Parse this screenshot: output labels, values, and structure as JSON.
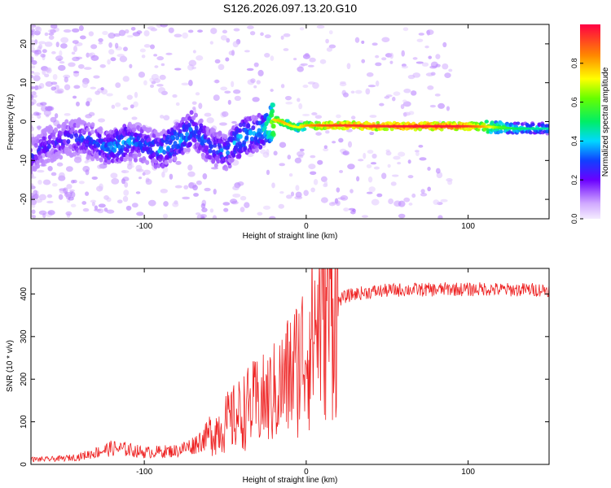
{
  "title": "S126.2026.097.13.20.G10",
  "colors": {
    "snr_line": "#ee2222",
    "axis": "#000000"
  },
  "chart_data": [
    {
      "type": "heatmap",
      "xlabel": "Height of straight line (km)",
      "ylabel": "Frequency (Hz)",
      "xlim": [
        -170,
        150
      ],
      "ylim": [
        -25,
        25
      ],
      "xticks": [
        -100,
        0,
        100
      ],
      "xtick_labels": [
        "-100",
        "0",
        "100"
      ],
      "yticks": [
        -20,
        -10,
        0,
        10,
        20
      ],
      "ytick_labels": [
        "-20",
        "-10",
        "0",
        "10",
        "20"
      ],
      "colorbar": {
        "label": "Normalized spectral amplitude",
        "range": [
          0,
          1
        ],
        "ticks": [
          0.0,
          0.2,
          0.4,
          0.6,
          0.8
        ],
        "tick_labels": [
          "0.0",
          "0.2",
          "0.4",
          "0.6",
          "0.8"
        ]
      },
      "ridge": [
        {
          "x": -170,
          "f": -9.0,
          "a": 0.25
        },
        {
          "x": -160,
          "f": -6.0,
          "a": 0.25
        },
        {
          "x": -150,
          "f": -4.5,
          "a": 0.25
        },
        {
          "x": -140,
          "f": -4.0,
          "a": 0.28
        },
        {
          "x": -130,
          "f": -5.5,
          "a": 0.3
        },
        {
          "x": -120,
          "f": -7.0,
          "a": 0.35
        },
        {
          "x": -110,
          "f": -5.0,
          "a": 0.35
        },
        {
          "x": -100,
          "f": -6.0,
          "a": 0.3
        },
        {
          "x": -90,
          "f": -7.5,
          "a": 0.35
        },
        {
          "x": -80,
          "f": -5.0,
          "a": 0.38
        },
        {
          "x": -70,
          "f": -2.0,
          "a": 0.35
        },
        {
          "x": -60,
          "f": -6.0,
          "a": 0.3
        },
        {
          "x": -50,
          "f": -8.0,
          "a": 0.32
        },
        {
          "x": -40,
          "f": -4.0,
          "a": 0.38
        },
        {
          "x": -30,
          "f": -3.0,
          "a": 0.35
        },
        {
          "x": -25,
          "f": -2.0,
          "a": 0.45
        },
        {
          "x": -20,
          "f": 0.5,
          "a": 0.7
        },
        {
          "x": -15,
          "f": 0.0,
          "a": 0.75
        },
        {
          "x": -10,
          "f": -1.0,
          "a": 0.7
        },
        {
          "x": -5,
          "f": -1.5,
          "a": 0.65
        },
        {
          "x": 0,
          "f": -1.0,
          "a": 0.75
        },
        {
          "x": 10,
          "f": -1.0,
          "a": 0.85
        },
        {
          "x": 20,
          "f": -1.0,
          "a": 0.88
        },
        {
          "x": 30,
          "f": -1.0,
          "a": 0.88
        },
        {
          "x": 40,
          "f": -1.2,
          "a": 0.9
        },
        {
          "x": 50,
          "f": -1.2,
          "a": 0.9
        },
        {
          "x": 60,
          "f": -1.2,
          "a": 0.92
        },
        {
          "x": 70,
          "f": -1.2,
          "a": 0.92
        },
        {
          "x": 80,
          "f": -1.2,
          "a": 0.92
        },
        {
          "x": 90,
          "f": -1.2,
          "a": 0.92
        },
        {
          "x": 100,
          "f": -1.2,
          "a": 0.88
        },
        {
          "x": 110,
          "f": -1.3,
          "a": 0.75
        },
        {
          "x": 120,
          "f": -1.5,
          "a": 0.55
        },
        {
          "x": 130,
          "f": -1.8,
          "a": 0.45
        },
        {
          "x": 140,
          "f": -1.8,
          "a": 0.42
        },
        {
          "x": 150,
          "f": -1.8,
          "a": 0.4
        }
      ]
    },
    {
      "type": "line",
      "xlabel": "Height of straight line (km)",
      "ylabel": "SNR (10 * v/v)",
      "xlim": [
        -170,
        150
      ],
      "ylim": [
        0,
        460
      ],
      "xticks": [
        -100,
        0,
        100
      ],
      "xtick_labels": [
        "-100",
        "0",
        "100"
      ],
      "yticks": [
        0,
        100,
        200,
        300,
        400
      ],
      "ytick_labels": [
        "0",
        "100",
        "200",
        "300",
        "400"
      ],
      "series": [
        {
          "name": "SNR",
          "x": [
            -170,
            -160,
            -150,
            -140,
            -130,
            -120,
            -110,
            -100,
            -90,
            -80,
            -70,
            -60,
            -50,
            -40,
            -35,
            -30,
            -25,
            -20,
            -15,
            -10,
            -5,
            0,
            5,
            10,
            15,
            20,
            25,
            30,
            40,
            50,
            60,
            70,
            80,
            90,
            100,
            110,
            120,
            130,
            140,
            150
          ],
          "y": [
            12,
            12,
            14,
            18,
            28,
            38,
            35,
            28,
            30,
            32,
            45,
            70,
            95,
            120,
            135,
            145,
            150,
            165,
            185,
            210,
            235,
            275,
            320,
            365,
            390,
            385,
            395,
            400,
            405,
            408,
            410,
            410,
            410,
            412,
            410,
            412,
            410,
            410,
            410,
            410
          ]
        }
      ]
    }
  ]
}
